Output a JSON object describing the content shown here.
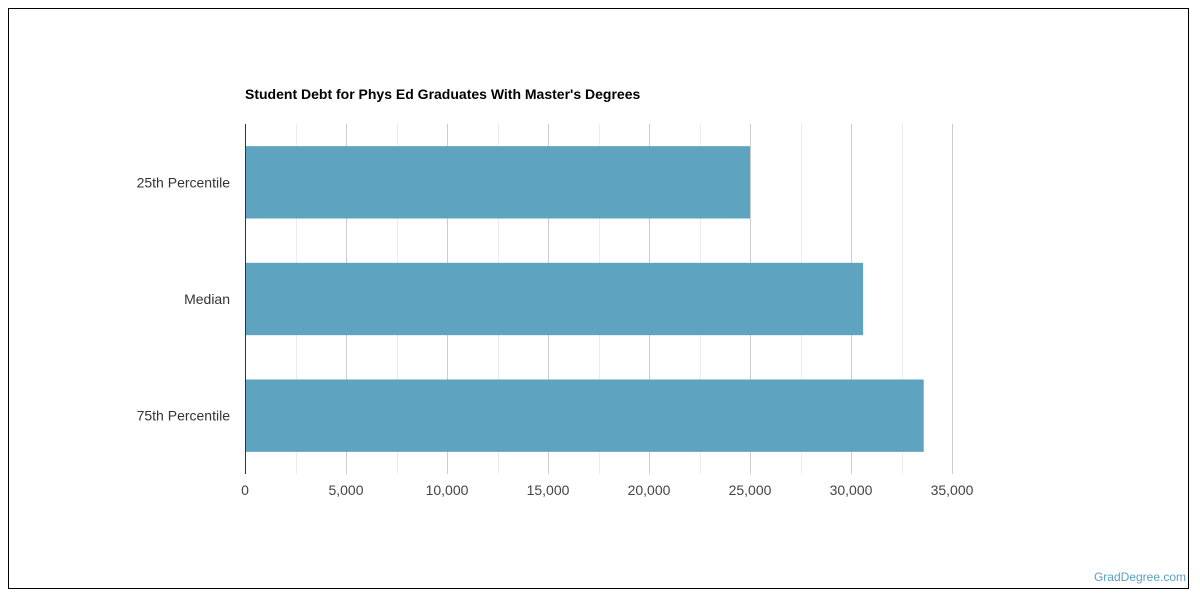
{
  "chart_data": {
    "type": "bar",
    "orientation": "horizontal",
    "title": "Student Debt for Phys Ed Graduates With Master's Degrees",
    "categories": [
      "25th Percentile",
      "Median",
      "75th Percentile"
    ],
    "values": [
      25000,
      30600,
      33600
    ],
    "xlim": [
      0,
      35000
    ],
    "xticks": [
      0,
      5000,
      10000,
      15000,
      20000,
      25000,
      30000,
      35000
    ],
    "xtick_labels": [
      "0",
      "5,000",
      "10,000",
      "15,000",
      "20,000",
      "25,000",
      "30,000",
      "35,000"
    ],
    "xlabel": "",
    "ylabel": "",
    "grid": true,
    "bar_color": "#5ea3bf"
  },
  "watermark": "GradDegree.com"
}
